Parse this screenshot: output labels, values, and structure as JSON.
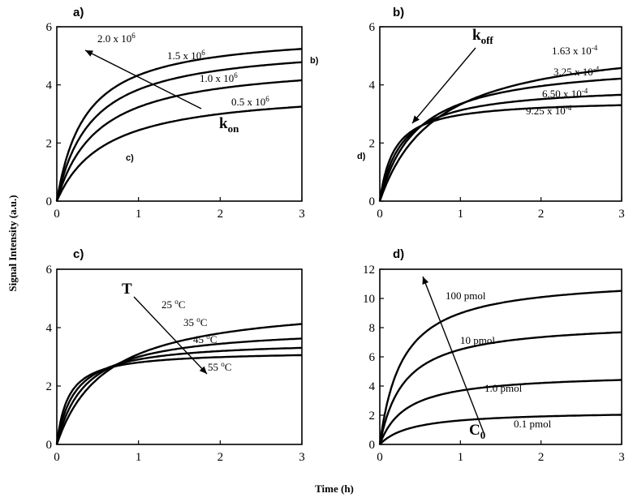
{
  "figure": {
    "ylabel": "Signal Intensity (a.u.)",
    "xlabel": "Time (h)"
  },
  "chart_data": [
    {
      "type": "line",
      "panel": "a)",
      "extra_letters": [
        "b)",
        "c)"
      ],
      "xlim": [
        0,
        3
      ],
      "ylim": [
        0,
        6
      ],
      "xticks": [
        "0",
        "1",
        "2",
        "3"
      ],
      "yticks": [
        "0",
        "2",
        "4",
        "6"
      ],
      "arrow_symbol": "k",
      "arrow_sub": "on",
      "series": [
        {
          "name": "2.0 x 10",
          "exp": "6",
          "plateau": 5.85,
          "tau": 0.35
        },
        {
          "name": "1.5 x 10",
          "exp": "6",
          "plateau": 5.45,
          "tau": 0.42
        },
        {
          "name": "1.0 x 10",
          "exp": "6",
          "plateau": 4.85,
          "tau": 0.5
        },
        {
          "name": "0.5 x 10",
          "exp": "6",
          "plateau": 3.9,
          "tau": 0.6
        }
      ]
    },
    {
      "type": "line",
      "panel": "b)",
      "extra_letters": [
        "d)"
      ],
      "xlim": [
        0,
        3
      ],
      "ylim": [
        0,
        6
      ],
      "xticks": [
        "0",
        "1",
        "2",
        "3"
      ],
      "yticks": [
        "0",
        "2",
        "4",
        "6"
      ],
      "arrow_symbol": "k",
      "arrow_sub": "off",
      "series": [
        {
          "name": "1.63 x 10",
          "exp": "-4",
          "plateau": 5.65,
          "tau": 0.7
        },
        {
          "name": "3.25 x 10",
          "exp": "-4",
          "plateau": 4.85,
          "tau": 0.45
        },
        {
          "name": "6.50 x 10",
          "exp": "-4",
          "plateau": 4.0,
          "tau": 0.28
        },
        {
          "name": "9.25 x 10",
          "exp": "-4",
          "plateau": 3.5,
          "tau": 0.18
        }
      ]
    },
    {
      "type": "line",
      "panel": "c)",
      "xlim": [
        0,
        3
      ],
      "ylim": [
        0,
        6
      ],
      "xticks": [
        "0",
        "1",
        "2",
        "3"
      ],
      "yticks": [
        "0",
        "2",
        "4",
        "6"
      ],
      "arrow_symbol": "T",
      "series": [
        {
          "name": "25 ",
          "exp": "o",
          "unit": "C",
          "plateau": 4.95,
          "tau": 0.6
        },
        {
          "name": "35 ",
          "exp": "o",
          "unit": "C",
          "plateau": 4.05,
          "tau": 0.35
        },
        {
          "name": "45 ",
          "exp": "o",
          "unit": "C",
          "plateau": 3.55,
          "tau": 0.22
        },
        {
          "name": "55 ",
          "exp": "o",
          "unit": "C",
          "plateau": 3.2,
          "tau": 0.14
        }
      ]
    },
    {
      "type": "line",
      "panel": "d)",
      "xlim": [
        0,
        3
      ],
      "ylim": [
        0,
        12
      ],
      "xticks": [
        "0",
        "1",
        "2",
        "3"
      ],
      "yticks": [
        "0",
        "2",
        "4",
        "6",
        "8",
        "10",
        "12"
      ],
      "arrow_symbol": "C",
      "arrow_sub": "0",
      "series": [
        {
          "name": "100 pmol",
          "plateau": 11.5,
          "tau": 0.28
        },
        {
          "name": "10 pmol",
          "plateau": 8.45,
          "tau": 0.3
        },
        {
          "name": "1.0 pmol",
          "plateau": 4.9,
          "tau": 0.33
        },
        {
          "name": "0.1 pmol",
          "plateau": 2.3,
          "tau": 0.4
        }
      ]
    }
  ]
}
